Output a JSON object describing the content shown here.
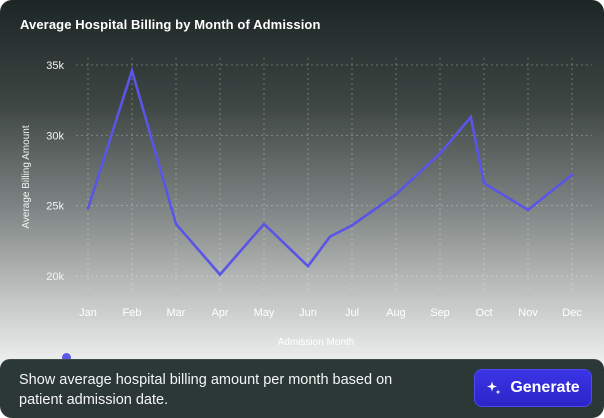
{
  "colors": {
    "line": "#5a55e6",
    "grid": "rgba(255,255,255,0.28)",
    "button": "#2f29d6"
  },
  "chart_data": {
    "type": "line",
    "title": "Average Hospital Billing by Month of Admission",
    "xlabel": "Admission Month",
    "ylabel": "Average Billing Amount",
    "categories": [
      "Jan",
      "Feb",
      "Mar",
      "Apr",
      "May",
      "Jun",
      "Jul",
      "Aug",
      "Sep",
      "Oct",
      "Nov",
      "Dec"
    ],
    "yticks": [
      "20k",
      "25k",
      "30k",
      "35k"
    ],
    "ylim": [
      20000,
      35000
    ],
    "grid": true,
    "series": [
      {
        "x": [
          0,
          1,
          2,
          3,
          4,
          5,
          5.5,
          6,
          7,
          8,
          8.7,
          9,
          10,
          11
        ],
        "values": [
          24800,
          34600,
          23700,
          20100,
          23700,
          20700,
          22800,
          23600,
          25800,
          28700,
          31300,
          26600,
          24700,
          27200
        ]
      }
    ]
  },
  "prompt": {
    "text": "Show average hospital billing amount per month based on patient admission date."
  },
  "generate_button": {
    "label": "Generate",
    "icon": "sparkle-icon"
  }
}
